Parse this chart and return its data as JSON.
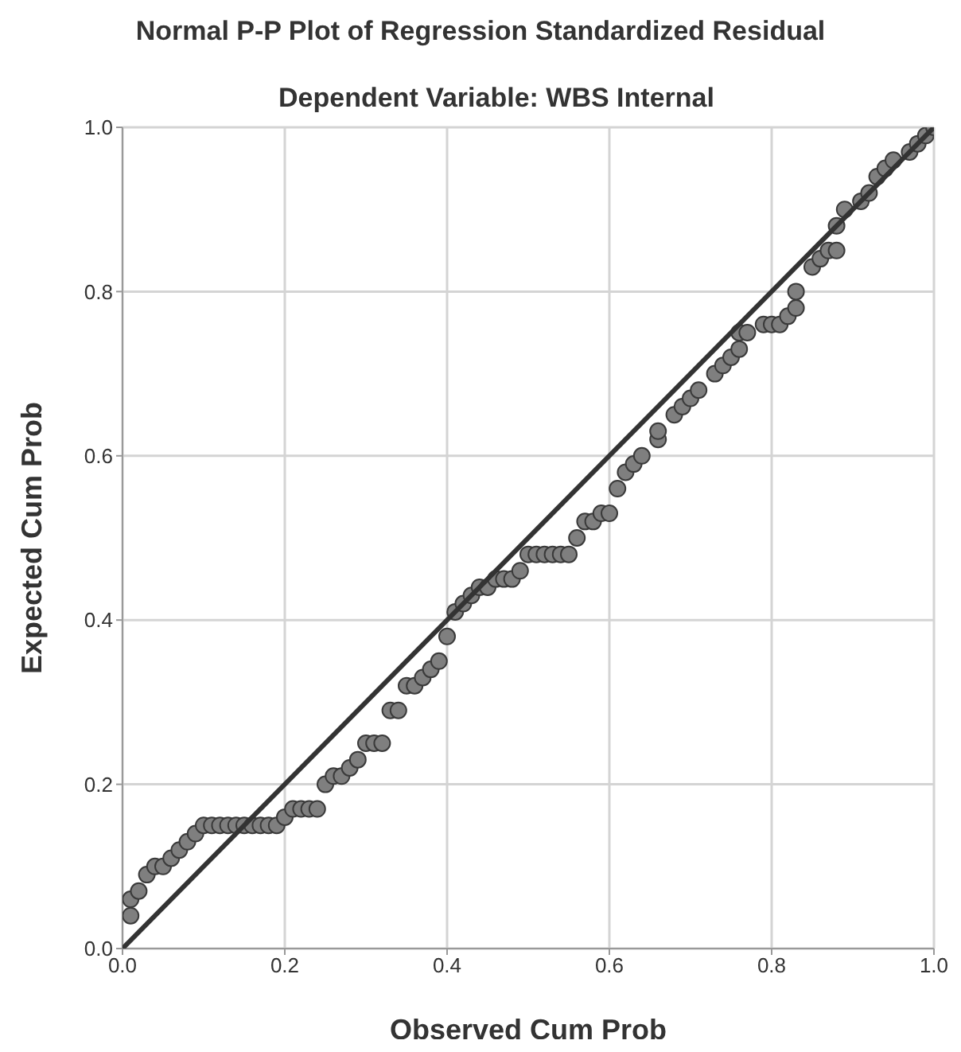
{
  "chart_data": {
    "type": "scatter",
    "title": "Normal P-P Plot of Regression Standardized Residual",
    "subtitle": "Dependent Variable: WBS Internal",
    "xlabel": "Observed Cum Prob",
    "ylabel": "Expected Cum Prob",
    "xlim": [
      0,
      1
    ],
    "ylim": [
      0,
      1
    ],
    "xticks": [
      {
        "value": 0,
        "label": "0.0"
      },
      {
        "value": 0.2,
        "label": "0.2"
      },
      {
        "value": 0.4,
        "label": "0.4"
      },
      {
        "value": 0.6,
        "label": "0.6"
      },
      {
        "value": 0.8,
        "label": "0.8"
      },
      {
        "value": 1,
        "label": "1.0"
      }
    ],
    "yticks": [
      {
        "value": 0,
        "label": "0.0"
      },
      {
        "value": 0.2,
        "label": "0.2"
      },
      {
        "value": 0.4,
        "label": "0.4"
      },
      {
        "value": 0.6,
        "label": "0.6"
      },
      {
        "value": 0.8,
        "label": "0.8"
      },
      {
        "value": 1,
        "label": "1.0"
      }
    ],
    "grid": true,
    "marker": "circle",
    "series": [
      {
        "type": "scatter",
        "color": "#7f7f7f",
        "x": [
          0.01,
          0.01,
          0.02,
          0.03,
          0.04,
          0.05,
          0.06,
          0.07,
          0.08,
          0.09,
          0.1,
          0.11,
          0.12,
          0.13,
          0.14,
          0.15,
          0.16,
          0.17,
          0.18,
          0.19,
          0.2,
          0.21,
          0.22,
          0.23,
          0.24,
          0.25,
          0.26,
          0.27,
          0.28,
          0.29,
          0.3,
          0.31,
          0.32,
          0.33,
          0.34,
          0.35,
          0.36,
          0.37,
          0.38,
          0.39,
          0.4,
          0.41,
          0.42,
          0.43,
          0.44,
          0.45,
          0.46,
          0.47,
          0.48,
          0.49,
          0.5,
          0.51,
          0.52,
          0.53,
          0.54,
          0.55,
          0.56,
          0.57,
          0.58,
          0.59,
          0.6,
          0.61,
          0.62,
          0.63,
          0.64,
          0.66,
          0.66,
          0.68,
          0.69,
          0.7,
          0.71,
          0.73,
          0.74,
          0.75,
          0.76,
          0.76,
          0.77,
          0.79,
          0.8,
          0.81,
          0.82,
          0.83,
          0.83,
          0.85,
          0.86,
          0.87,
          0.88,
          0.88,
          0.89,
          0.91,
          0.92,
          0.93,
          0.94,
          0.95,
          0.97,
          0.98,
          0.99,
          1.0
        ],
        "values": [
          0.04,
          0.06,
          0.07,
          0.09,
          0.1,
          0.1,
          0.11,
          0.12,
          0.13,
          0.14,
          0.15,
          0.15,
          0.15,
          0.15,
          0.15,
          0.15,
          0.15,
          0.15,
          0.15,
          0.15,
          0.16,
          0.17,
          0.17,
          0.17,
          0.17,
          0.2,
          0.21,
          0.21,
          0.22,
          0.23,
          0.25,
          0.25,
          0.25,
          0.29,
          0.29,
          0.32,
          0.32,
          0.33,
          0.34,
          0.35,
          0.38,
          0.41,
          0.42,
          0.43,
          0.44,
          0.44,
          0.45,
          0.45,
          0.45,
          0.46,
          0.48,
          0.48,
          0.48,
          0.48,
          0.48,
          0.48,
          0.5,
          0.52,
          0.52,
          0.53,
          0.53,
          0.56,
          0.58,
          0.59,
          0.6,
          0.62,
          0.63,
          0.65,
          0.66,
          0.67,
          0.68,
          0.7,
          0.71,
          0.72,
          0.73,
          0.75,
          0.75,
          0.76,
          0.76,
          0.76,
          0.77,
          0.78,
          0.8,
          0.83,
          0.84,
          0.85,
          0.85,
          0.88,
          0.9,
          0.91,
          0.92,
          0.94,
          0.95,
          0.96,
          0.97,
          0.98,
          0.99,
          1.0
        ]
      },
      {
        "type": "line",
        "color": "#333333",
        "x": [
          0,
          1
        ],
        "values": [
          0,
          1
        ],
        "line_style": "solid",
        "marker": "none"
      }
    ]
  }
}
